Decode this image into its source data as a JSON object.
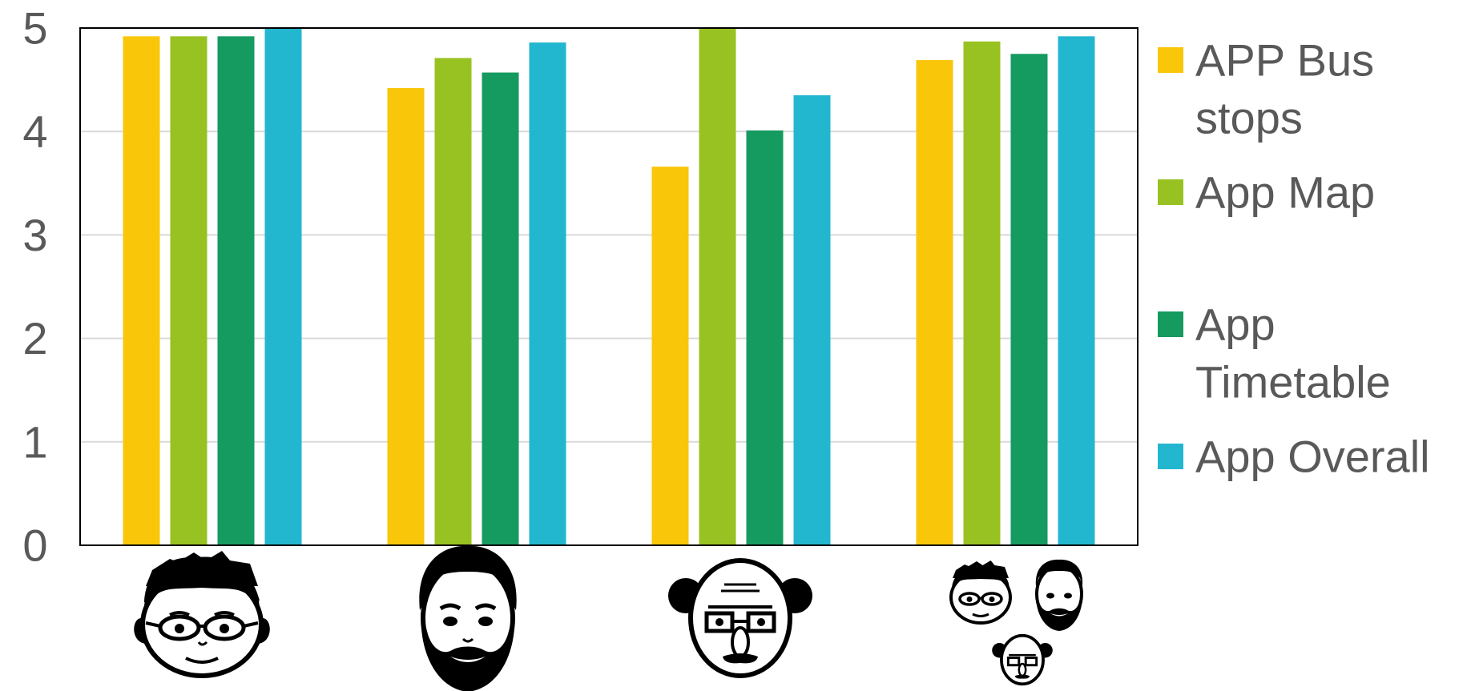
{
  "chart_data": {
    "type": "bar",
    "title": "",
    "xlabel": "",
    "ylabel": "",
    "ylim": [
      0,
      5
    ],
    "yticks": [
      "0",
      "1",
      "2",
      "3",
      "4",
      "5"
    ],
    "grid": true,
    "legend_position": "right",
    "categories": [
      "user-group-1",
      "user-group-2",
      "user-group-3",
      "all-users"
    ],
    "category_icons": [
      "face-glasses-icon",
      "face-beard-icon",
      "face-elderly-icon",
      "faces-group-icon"
    ],
    "series": [
      {
        "name": "APP Bus stops",
        "legend_lines": [
          "APP Bus",
          "stops"
        ],
        "color": "#FAC60A",
        "values": [
          4.92,
          4.42,
          3.66,
          4.69
        ]
      },
      {
        "name": " App Map",
        "legend_lines": [
          " App Map"
        ],
        "color": "#98C221",
        "values": [
          4.92,
          4.71,
          5.0,
          4.87
        ]
      },
      {
        "name": "App Timetable",
        "legend_lines": [
          "App",
          "Timetable"
        ],
        "color": "#159A60",
        "values": [
          4.92,
          4.57,
          4.01,
          4.75
        ]
      },
      {
        "name": "App Overall",
        "legend_lines": [
          "App Overall"
        ],
        "color": "#23B6CF",
        "values": [
          5.0,
          4.86,
          4.35,
          4.92
        ]
      }
    ]
  }
}
